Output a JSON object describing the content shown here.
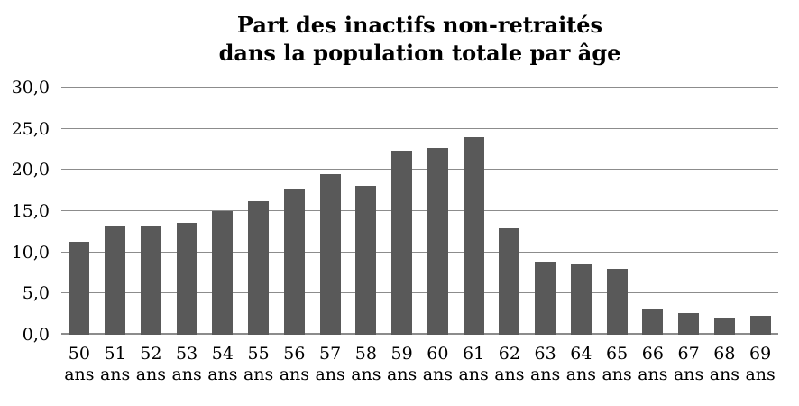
{
  "title": {
    "line1": "Part des inactifs non-retraités",
    "line2": "dans la population totale par âge"
  },
  "chart_data": {
    "type": "bar",
    "title": "Part des inactifs non-retraités dans la population totale par âge",
    "categories": [
      "50 ans",
      "51 ans",
      "52 ans",
      "53 ans",
      "54 ans",
      "55 ans",
      "56 ans",
      "57 ans",
      "58 ans",
      "59 ans",
      "60 ans",
      "61 ans",
      "62 ans",
      "63 ans",
      "64 ans",
      "65 ans",
      "66 ans",
      "67 ans",
      "68 ans",
      "69 ans"
    ],
    "values": [
      11.3,
      13.3,
      13.3,
      13.6,
      15.0,
      16.2,
      17.6,
      19.5,
      18.1,
      22.3,
      22.7,
      24.0,
      12.9,
      8.9,
      8.5,
      8.0,
      3.1,
      2.6,
      2.1,
      2.3
    ],
    "xlabel": "",
    "ylabel": "",
    "ylim": [
      0,
      30
    ],
    "yticks": [
      0,
      5,
      10,
      15,
      20,
      25,
      30
    ],
    "ytick_labels": [
      "0,0",
      "5,0",
      "10,0",
      "15,0",
      "20,0",
      "25,0",
      "30,0"
    ],
    "grid": true,
    "legend": false,
    "bar_color": "#595959",
    "gridline_color": "#8c8c8c"
  },
  "x_axis": {
    "ages": [
      "50",
      "51",
      "52",
      "53",
      "54",
      "55",
      "56",
      "57",
      "58",
      "59",
      "60",
      "61",
      "62",
      "63",
      "64",
      "65",
      "66",
      "67",
      "68",
      "69"
    ],
    "unit": "ans"
  }
}
